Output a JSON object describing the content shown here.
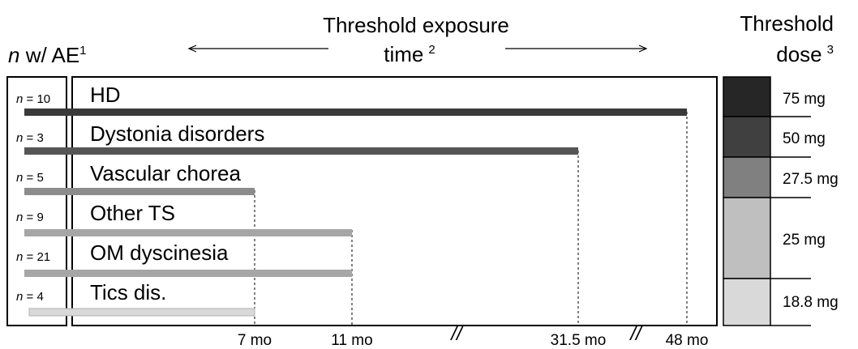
{
  "header": {
    "n_prefix": "n",
    "n_rest": " w/ AE",
    "n_sup": "1",
    "exposure_line1": "Threshold exposure",
    "exposure_line2": "time",
    "exposure_sup": "2",
    "dose_line1": "Threshold",
    "dose_line2": "dose",
    "dose_sup": "3"
  },
  "rows": [
    {
      "n_prefix": "n",
      "n_suffix": " = 10",
      "label": "HD",
      "bar_color": "#3a3a3a"
    },
    {
      "n_prefix": "n",
      "n_suffix": " = 3",
      "label": "Dystonia disorders",
      "bar_color": "#555555"
    },
    {
      "n_prefix": "n",
      "n_suffix": " = 5",
      "label": "Vascular chorea",
      "bar_color": "#8c8c8c"
    },
    {
      "n_prefix": "n",
      "n_suffix": " = 9",
      "label": "Other TS",
      "bar_color": "#a6a6a6"
    },
    {
      "n_prefix": "n",
      "n_suffix": " = 21",
      "label": "OM dyscinesia",
      "bar_color": "#a6a6a6"
    },
    {
      "n_prefix": "n",
      "n_suffix": " = 4",
      "label": "Tics dis.",
      "bar_color": "#d9d9d9"
    }
  ],
  "time_ticks": [
    "7 mo",
    "11 mo",
    "31.5 mo",
    "48 mo"
  ],
  "axis_break_symbol": "//",
  "doses": [
    {
      "label": "75 mg",
      "color": "#262626"
    },
    {
      "label": "50 mg",
      "color": "#404040"
    },
    {
      "label": "27.5 mg",
      "color": "#808080"
    },
    {
      "label": "25 mg",
      "color": "#bfbfbf"
    },
    {
      "label": "18.8 mg",
      "color": "#d9d9d9"
    }
  ]
}
